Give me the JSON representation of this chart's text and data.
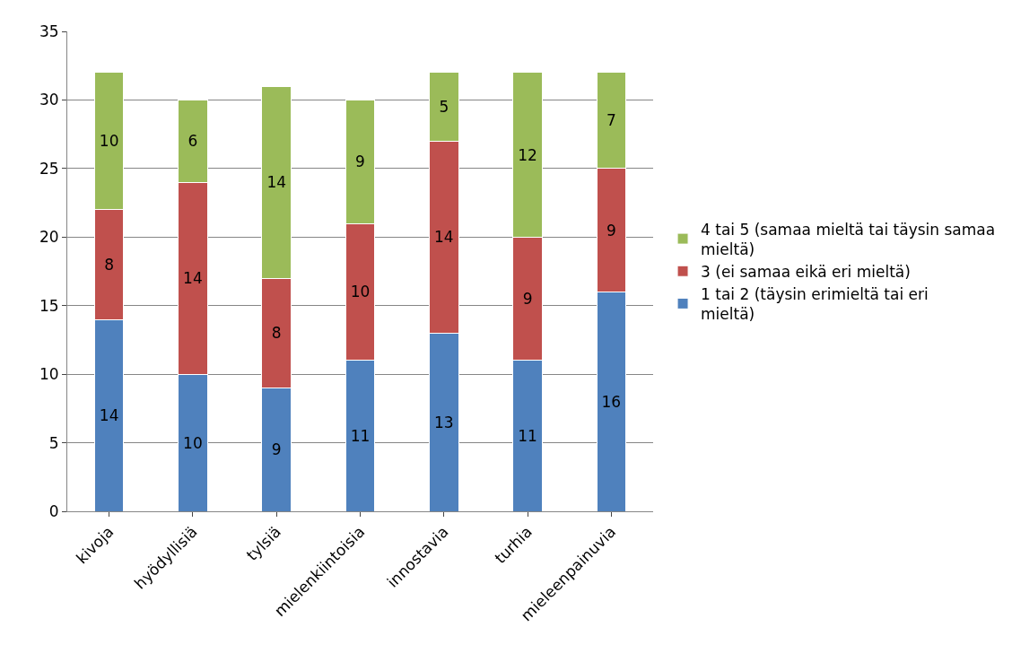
{
  "chart_data": {
    "type": "bar",
    "stacked": true,
    "categories": [
      "kivoja",
      "hyödyllisiä",
      "tylsiä",
      "mielenkiintoisia",
      "innostavia",
      "turhia",
      "mieleenpainuvia"
    ],
    "series": [
      {
        "name": "1 tai 2 (täysin erimieltä tai eri mieltä)",
        "color": "#4f81bd",
        "values": [
          14,
          10,
          9,
          11,
          13,
          11,
          16
        ]
      },
      {
        "name": "3 (ei samaa eikä eri mieltä)",
        "color": "#c0504d",
        "values": [
          8,
          14,
          8,
          10,
          14,
          9,
          9
        ]
      },
      {
        "name": "4 tai 5 (samaa mieltä tai täysin samaa mieltä)",
        "color": "#9bbb59",
        "values": [
          10,
          6,
          14,
          9,
          5,
          12,
          7
        ]
      }
    ],
    "ylim": [
      0,
      35
    ],
    "yticks": [
      0,
      5,
      10,
      15,
      20,
      25,
      30,
      35
    ],
    "grid": "y",
    "legend": "right",
    "data_labels": true
  }
}
